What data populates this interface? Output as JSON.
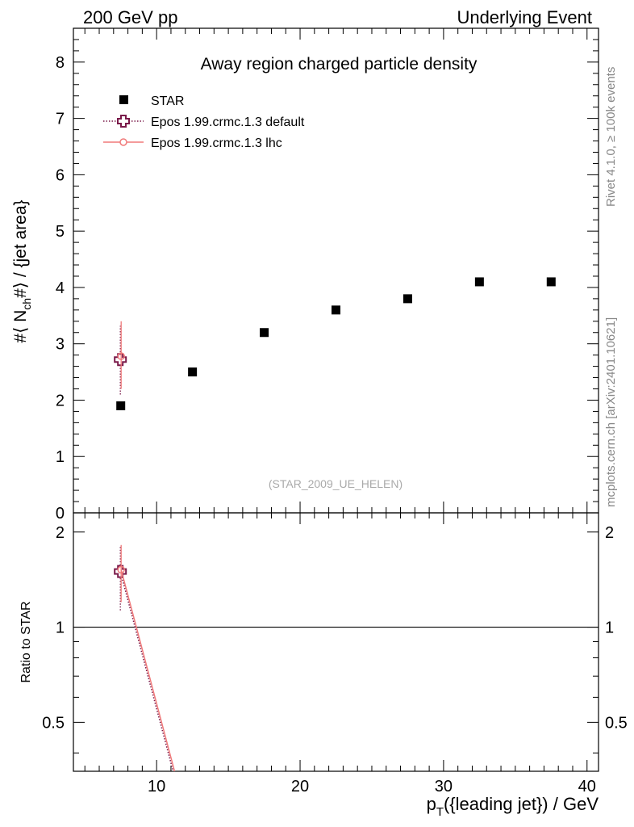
{
  "header": {
    "left": "200 GeV pp",
    "right": "Underlying Event"
  },
  "side": {
    "rivet": "Rivet 4.1.0, ≥ 100k events",
    "mcplots": "mcplots.cern.ch [arXiv:2401.10621]"
  },
  "chart_data": {
    "type": "scatter",
    "title": "Away region charged particle density",
    "watermark": "(STAR_2009_UE_HELEN)",
    "ylabel_main": "#⟨ N",
    "ylabel_sub": "ch",
    "ylabel_rest": "#⟩ / {jet area}",
    "xlabel_main": "p",
    "xlabel_sub": "T",
    "xlabel_rest": "({leading jet}) / GeV",
    "ratio_ylabel": "Ratio to STAR",
    "xlim": [
      4.2,
      40.8
    ],
    "ylim": [
      0,
      8.6
    ],
    "ratio_ylim": [
      0.35,
      2.3
    ],
    "x_ticks": [
      "10",
      "20",
      "30",
      "40"
    ],
    "y_ticks": [
      "0",
      "1",
      "2",
      "3",
      "4",
      "5",
      "6",
      "7",
      "8"
    ],
    "ratio_ticks": [
      "0.5",
      "1",
      "2"
    ],
    "legend_position": "top-left",
    "grid": false,
    "series": [
      {
        "name": "STAR",
        "color": "#000000",
        "marker": "square",
        "x": [
          7.5,
          12.5,
          17.5,
          22.5,
          27.5,
          32.5,
          37.5
        ],
        "y": [
          1.9,
          2.5,
          3.2,
          3.6,
          3.8,
          4.1,
          4.1
        ]
      },
      {
        "name": "Epos 1.99.crmc.1.3 default",
        "color": "#7a1a4a",
        "marker": "open-cross",
        "line": "dotted",
        "x": [
          7.5
        ],
        "y": [
          2.72
        ],
        "y_err_low": [
          0.62
        ],
        "y_err_high": [
          0.6
        ],
        "ratio": [
          1.5
        ],
        "ratio_err_low": [
          0.37
        ],
        "ratio_err_high": [
          0.3
        ],
        "ratio_line_to": [
          11.3,
          0.33
        ]
      },
      {
        "name": "Epos 1.99.crmc.1.3 lhc",
        "color": "#f07a7a",
        "marker": "open-circle",
        "line": "solid",
        "x": [
          7.5
        ],
        "y": [
          2.78
        ],
        "y_err_low": [
          0.58
        ],
        "y_err_high": [
          0.62
        ],
        "ratio": [
          1.52
        ],
        "ratio_err_low": [
          0.32
        ],
        "ratio_err_high": [
          0.3
        ],
        "ratio_line_to": [
          11.4,
          0.33
        ]
      }
    ]
  }
}
